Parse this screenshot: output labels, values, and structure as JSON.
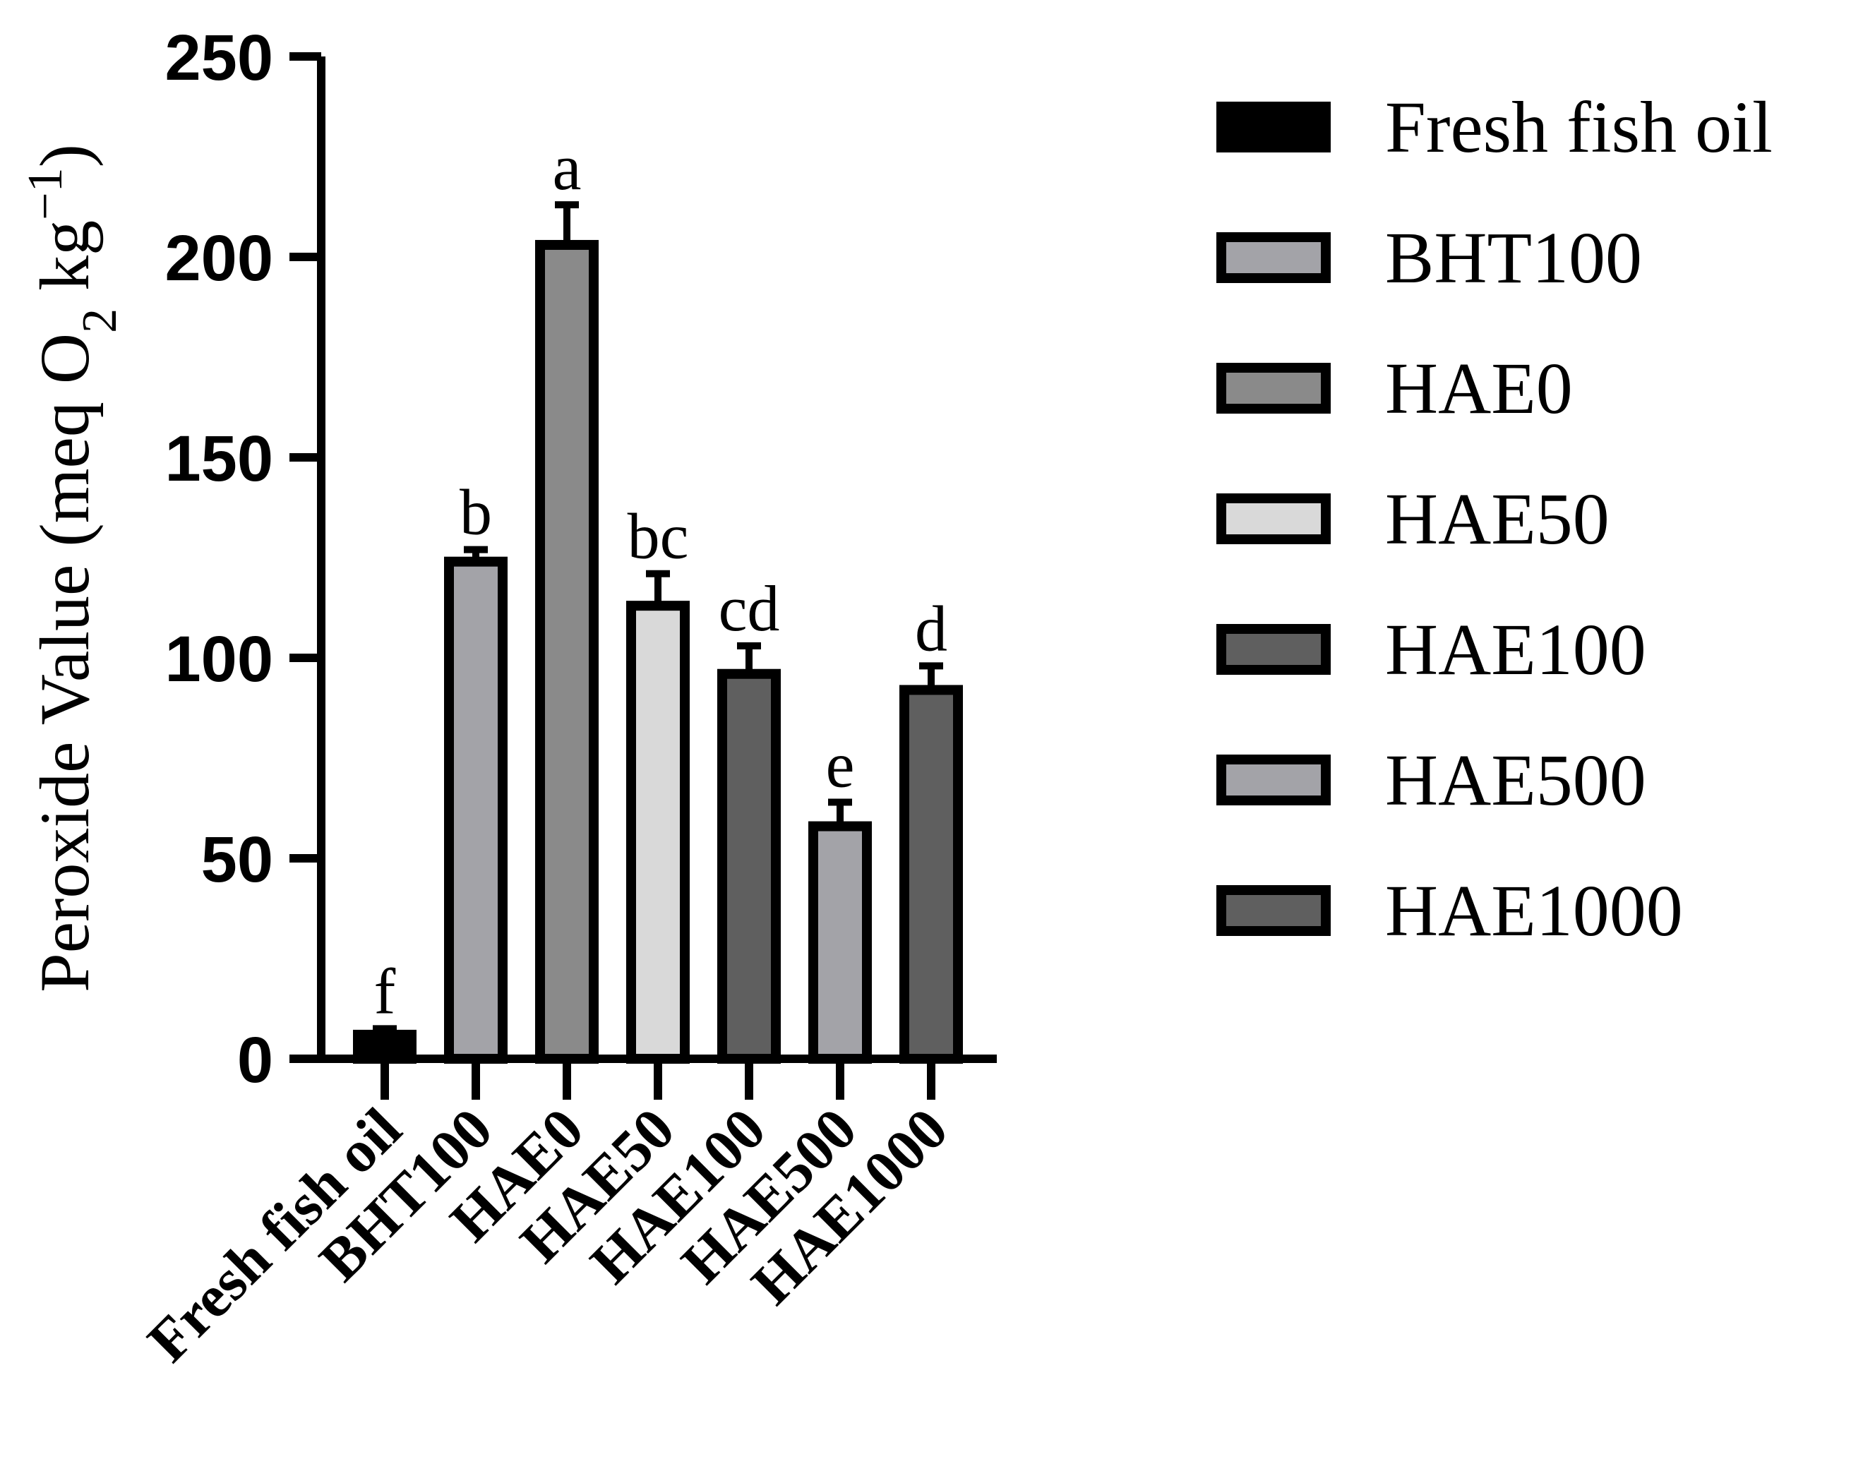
{
  "chart_data": {
    "type": "bar",
    "categories": [
      "Fresh fish oil",
      "BHT100",
      "HAE0",
      "HAE50",
      "HAE100",
      "HAE500",
      "HAE1000"
    ],
    "values": [
      6,
      124,
      203,
      113,
      96,
      58,
      92
    ],
    "errors": [
      1.5,
      3,
      10,
      8,
      7,
      6,
      6
    ],
    "significance": [
      "f",
      "b",
      "a",
      "bc",
      "cd",
      "e",
      "d"
    ],
    "colors": [
      "#000000",
      "#a3a3a8",
      "#8a8a8a",
      "#d9d9d9",
      "#5f5f5f",
      "#a3a3a8",
      "#5f5f5f"
    ],
    "ylabel_parts": [
      "Peroxide Value (meq O",
      "2",
      " kg",
      "−1",
      ")"
    ],
    "ylim": [
      0,
      250
    ],
    "yticks": [
      "0",
      "50",
      "100",
      "150",
      "200",
      "250"
    ],
    "legend_position": "right",
    "grid": false
  }
}
